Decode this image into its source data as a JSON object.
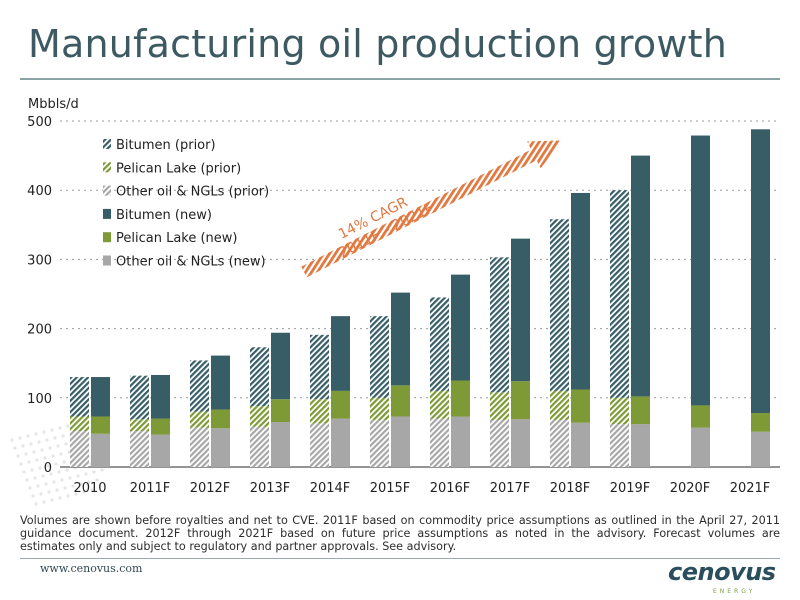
{
  "slide": {
    "title": "Manufacturing oil production growth",
    "footnote": "Volumes are shown before royalties and net to CVE. 2011F based on commodity price assumptions as outlined in the April 27, 2011 guidance document. 2012F through 2021F based on future price assumptions as noted in the advisory. Forecast volumes are estimates only and subject to regulatory and partner approvals. See advisory.",
    "website": "www.cenovus.com",
    "brand": "cenovus",
    "brand_sub": "ENERGY"
  },
  "colors": {
    "bitumen": "#375d67",
    "pelican": "#7d9a36",
    "other": "#a7a7a7",
    "arrow": "#e07840",
    "title": "#3d5a63"
  },
  "chart_data": {
    "type": "bar",
    "ylabel": "Mbbls/d",
    "ylim": [
      0,
      500
    ],
    "yticks": [
      0,
      100,
      200,
      300,
      400,
      500
    ],
    "grid": true,
    "legend_position": "top-left",
    "categories": [
      "2010",
      "2011F",
      "2012F",
      "2013F",
      "2014F",
      "2015F",
      "2016F",
      "2017F",
      "2018F",
      "2019F",
      "2020F",
      "2021F"
    ],
    "series": [
      {
        "name": "Bitumen (prior)",
        "group": "prior",
        "style": "hatched",
        "color": "#375d67",
        "values": [
          57,
          63,
          74,
          85,
          93,
          118,
          135,
          195,
          248,
          300,
          null,
          null
        ]
      },
      {
        "name": "Pelican Lake (prior)",
        "group": "prior",
        "style": "hatched",
        "color": "#7d9a36",
        "values": [
          21,
          17,
          23,
          30,
          35,
          32,
          40,
          40,
          42,
          38,
          null,
          null
        ]
      },
      {
        "name": "Other oil & NGLs (prior)",
        "group": "prior",
        "style": "hatched",
        "color": "#a7a7a7",
        "values": [
          52,
          52,
          57,
          58,
          63,
          68,
          70,
          68,
          68,
          62,
          null,
          null
        ]
      },
      {
        "name": "Bitumen (new)",
        "group": "new",
        "style": "solid",
        "color": "#375d67",
        "values": [
          57,
          63,
          78,
          96,
          108,
          134,
          153,
          206,
          284,
          348,
          390,
          410
        ]
      },
      {
        "name": "Pelican Lake (new)",
        "group": "new",
        "style": "solid",
        "color": "#7d9a36",
        "values": [
          25,
          23,
          27,
          33,
          40,
          45,
          52,
          55,
          48,
          40,
          32,
          27
        ]
      },
      {
        "name": "Other oil & NGLs (new)",
        "group": "new",
        "style": "solid",
        "color": "#a7a7a7",
        "values": [
          48,
          47,
          56,
          65,
          70,
          73,
          73,
          69,
          64,
          62,
          57,
          51
        ]
      }
    ],
    "annotation": {
      "line1": "14% CAGR",
      "line2": "2011F – 2021F"
    }
  }
}
